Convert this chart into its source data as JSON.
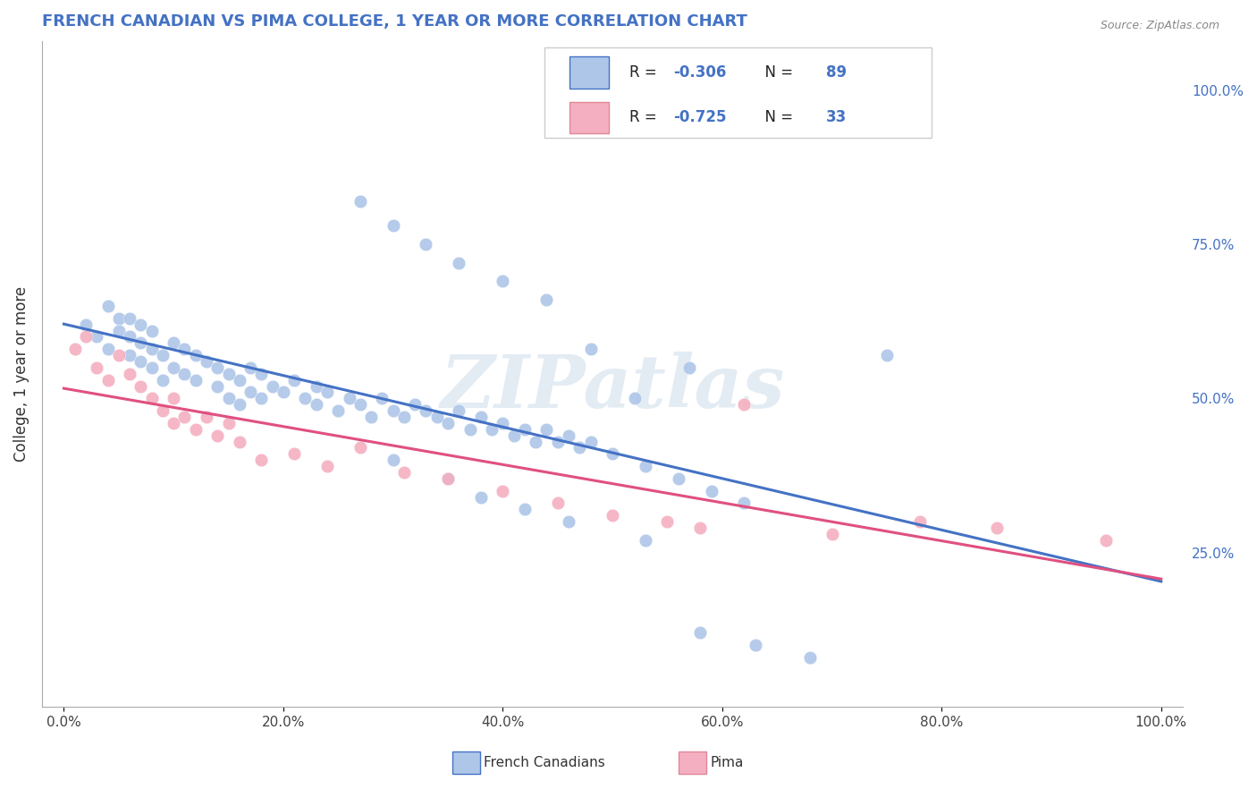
{
  "title": "FRENCH CANADIAN VS PIMA COLLEGE, 1 YEAR OR MORE CORRELATION CHART",
  "source_text": "Source: ZipAtlas.com",
  "ylabel": "College, 1 year or more",
  "xticklabels": [
    "0.0%",
    "20.0%",
    "40.0%",
    "60.0%",
    "80.0%",
    "100.0%"
  ],
  "xticks": [
    0.0,
    0.2,
    0.4,
    0.6,
    0.8,
    1.0
  ],
  "yticklabels_right": [
    "25.0%",
    "50.0%",
    "75.0%",
    "100.0%"
  ],
  "yticks_right": [
    0.25,
    0.5,
    0.75,
    1.0
  ],
  "xlim": [
    -0.02,
    1.02
  ],
  "ylim": [
    0.0,
    1.08
  ],
  "blue_R": -0.306,
  "blue_N": 89,
  "pink_R": -0.725,
  "pink_N": 33,
  "blue_color": "#aec6e8",
  "pink_color": "#f4afc0",
  "blue_line_color": "#4472c4",
  "pink_line_color": "#e05080",
  "legend_text_color": "#4472c4",
  "title_color": "#4472c4",
  "legend_label_blue": "French Canadians",
  "legend_label_pink": "Pima",
  "watermark": "ZIPatlas",
  "background_color": "#ffffff",
  "grid_color": "#cccccc",
  "blue_x": [
    0.02,
    0.03,
    0.04,
    0.04,
    0.05,
    0.05,
    0.06,
    0.06,
    0.06,
    0.07,
    0.07,
    0.07,
    0.08,
    0.08,
    0.08,
    0.09,
    0.09,
    0.1,
    0.1,
    0.11,
    0.11,
    0.12,
    0.12,
    0.13,
    0.14,
    0.14,
    0.15,
    0.15,
    0.16,
    0.16,
    0.17,
    0.17,
    0.18,
    0.18,
    0.19,
    0.2,
    0.21,
    0.22,
    0.23,
    0.23,
    0.24,
    0.25,
    0.26,
    0.27,
    0.28,
    0.29,
    0.3,
    0.31,
    0.32,
    0.33,
    0.34,
    0.35,
    0.36,
    0.37,
    0.38,
    0.39,
    0.4,
    0.41,
    0.42,
    0.43,
    0.44,
    0.45,
    0.46,
    0.47,
    0.48,
    0.5,
    0.53,
    0.56,
    0.59,
    0.62,
    0.27,
    0.3,
    0.33,
    0.36,
    0.4,
    0.44,
    0.48,
    0.52,
    0.57,
    0.3,
    0.35,
    0.38,
    0.42,
    0.46,
    0.53,
    0.58,
    0.63,
    0.68,
    0.75
  ],
  "blue_y": [
    0.62,
    0.6,
    0.65,
    0.58,
    0.63,
    0.61,
    0.6,
    0.63,
    0.57,
    0.62,
    0.59,
    0.56,
    0.61,
    0.58,
    0.55,
    0.57,
    0.53,
    0.59,
    0.55,
    0.58,
    0.54,
    0.57,
    0.53,
    0.56,
    0.55,
    0.52,
    0.54,
    0.5,
    0.53,
    0.49,
    0.55,
    0.51,
    0.54,
    0.5,
    0.52,
    0.51,
    0.53,
    0.5,
    0.49,
    0.52,
    0.51,
    0.48,
    0.5,
    0.49,
    0.47,
    0.5,
    0.48,
    0.47,
    0.49,
    0.48,
    0.47,
    0.46,
    0.48,
    0.45,
    0.47,
    0.45,
    0.46,
    0.44,
    0.45,
    0.43,
    0.45,
    0.43,
    0.44,
    0.42,
    0.43,
    0.41,
    0.39,
    0.37,
    0.35,
    0.33,
    0.82,
    0.78,
    0.75,
    0.72,
    0.69,
    0.66,
    0.58,
    0.5,
    0.55,
    0.4,
    0.37,
    0.34,
    0.32,
    0.3,
    0.27,
    0.12,
    0.1,
    0.08,
    0.57
  ],
  "pink_x": [
    0.01,
    0.02,
    0.03,
    0.04,
    0.05,
    0.06,
    0.07,
    0.08,
    0.09,
    0.1,
    0.1,
    0.11,
    0.12,
    0.13,
    0.14,
    0.15,
    0.16,
    0.18,
    0.21,
    0.24,
    0.27,
    0.31,
    0.35,
    0.4,
    0.45,
    0.5,
    0.55,
    0.58,
    0.62,
    0.7,
    0.78,
    0.85,
    0.95
  ],
  "pink_y": [
    0.58,
    0.6,
    0.55,
    0.53,
    0.57,
    0.54,
    0.52,
    0.5,
    0.48,
    0.5,
    0.46,
    0.47,
    0.45,
    0.47,
    0.44,
    0.46,
    0.43,
    0.4,
    0.41,
    0.39,
    0.42,
    0.38,
    0.37,
    0.35,
    0.33,
    0.31,
    0.3,
    0.29,
    0.49,
    0.28,
    0.3,
    0.29,
    0.27
  ]
}
